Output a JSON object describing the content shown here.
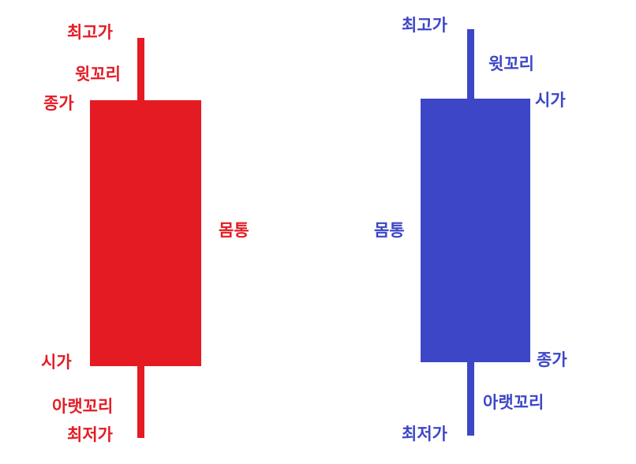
{
  "colors": {
    "bullish": "#e41b23",
    "bearish": "#3c46c6",
    "background": "#ffffff"
  },
  "bullish_candle": {
    "high": "최고가",
    "upper_wick": "윗꼬리",
    "close": "종가",
    "body": "몸통",
    "open": "시가",
    "lower_wick": "아랫꼬리",
    "low": "최저가"
  },
  "bearish_candle": {
    "high": "최고가",
    "upper_wick": "윗꼬리",
    "open": "시가",
    "body": "몸통",
    "close": "종가",
    "lower_wick": "아랫꼬리",
    "low": "최저가"
  }
}
